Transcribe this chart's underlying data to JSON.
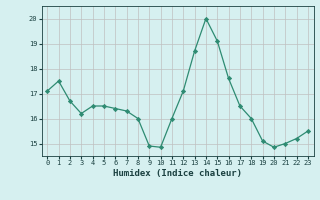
{
  "x": [
    0,
    1,
    2,
    3,
    4,
    5,
    6,
    7,
    8,
    9,
    10,
    11,
    12,
    13,
    14,
    15,
    16,
    17,
    18,
    19,
    20,
    21,
    22,
    23
  ],
  "y": [
    17.1,
    17.5,
    16.7,
    16.2,
    16.5,
    16.5,
    16.4,
    16.3,
    16.0,
    14.9,
    14.85,
    16.0,
    17.1,
    18.7,
    20.0,
    19.1,
    17.6,
    16.5,
    16.0,
    15.1,
    14.85,
    15.0,
    15.2,
    15.5
  ],
  "line_color": "#2e8b72",
  "marker_color": "#2e8b72",
  "bg_color": "#d6f0f0",
  "grid_color": "#c0c0c0",
  "axis_label_color": "#1a4040",
  "tick_color": "#1a4040",
  "xlabel": "Humidex (Indice chaleur)",
  "ylim": [
    14.5,
    20.5
  ],
  "yticks": [
    15,
    16,
    17,
    18,
    19,
    20
  ],
  "xticks": [
    0,
    1,
    2,
    3,
    4,
    5,
    6,
    7,
    8,
    9,
    10,
    11,
    12,
    13,
    14,
    15,
    16,
    17,
    18,
    19,
    20,
    21,
    22,
    23
  ]
}
